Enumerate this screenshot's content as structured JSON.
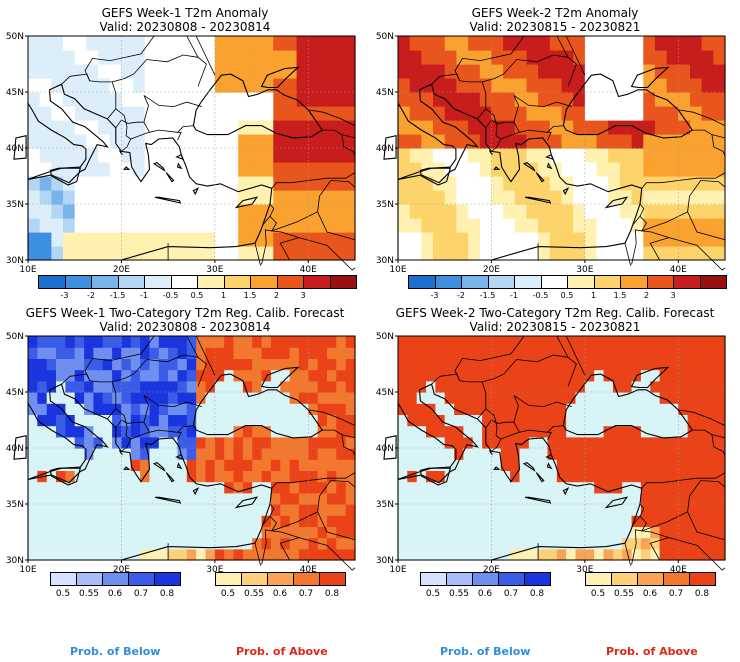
{
  "panels": [
    {
      "title": "GEFS Week-1 T2m Anomaly",
      "valid": "Valid: 20230808 - 20230814",
      "kind": "anomaly",
      "scenario": "w1a"
    },
    {
      "title": "GEFS Week-2 T2m Anomaly",
      "valid": "Valid: 20230815 - 20230821",
      "kind": "anomaly",
      "scenario": "w2a"
    },
    {
      "title": "GEFS Week-1 Two-Category T2m Reg. Calib. Forecast",
      "valid": "Valid: 20230808 - 20230814",
      "kind": "prob",
      "scenario": "w1p"
    },
    {
      "title": "GEFS Week-2 Two-Category T2m Reg. Calib. Forecast",
      "valid": "Valid: 20230815 - 20230821",
      "kind": "prob",
      "scenario": "w2p"
    }
  ],
  "axes": {
    "lat_labels": [
      "30N",
      "35N",
      "40N",
      "45N",
      "50N"
    ],
    "lon_labels": [
      "10E",
      "20E",
      "30E",
      "40E"
    ],
    "lat_range": [
      30,
      50
    ],
    "lon_range": [
      10,
      45
    ]
  },
  "anomaly_scale": {
    "ticks": [
      "-3",
      "-2",
      "-1.5",
      "-1",
      "-0.5",
      "0.5",
      "1",
      "1.5",
      "2",
      "3"
    ],
    "colors": [
      "#1e6fd0",
      "#3d8fe0",
      "#78b4ec",
      "#b3d6f5",
      "#dceefa",
      "#ffffff",
      "#fff2b0",
      "#fdd46b",
      "#f9a230",
      "#e9561d",
      "#c81d1d",
      "#9a0f0f"
    ]
  },
  "prob_scale": {
    "below_ticks": [
      "0.5",
      "0.55",
      "0.6",
      "0.7",
      "0.8"
    ],
    "above_ticks": [
      "0.5",
      "0.55",
      "0.6",
      "0.7",
      "0.8"
    ],
    "below_colors": [
      "#d6e2ff",
      "#a8bdf8",
      "#6f8ff0",
      "#3a5ce6",
      "#1a35de"
    ],
    "above_colors": [
      "#fff0b4",
      "#fdd07a",
      "#f9a454",
      "#f27830",
      "#ea4318"
    ],
    "sea_color": "#d8f4f6"
  },
  "footer": {
    "below": "Prob. of Below",
    "above": "Prob. of Above",
    "below_color": "#2f8de0",
    "above_color": "#e0261a"
  }
}
